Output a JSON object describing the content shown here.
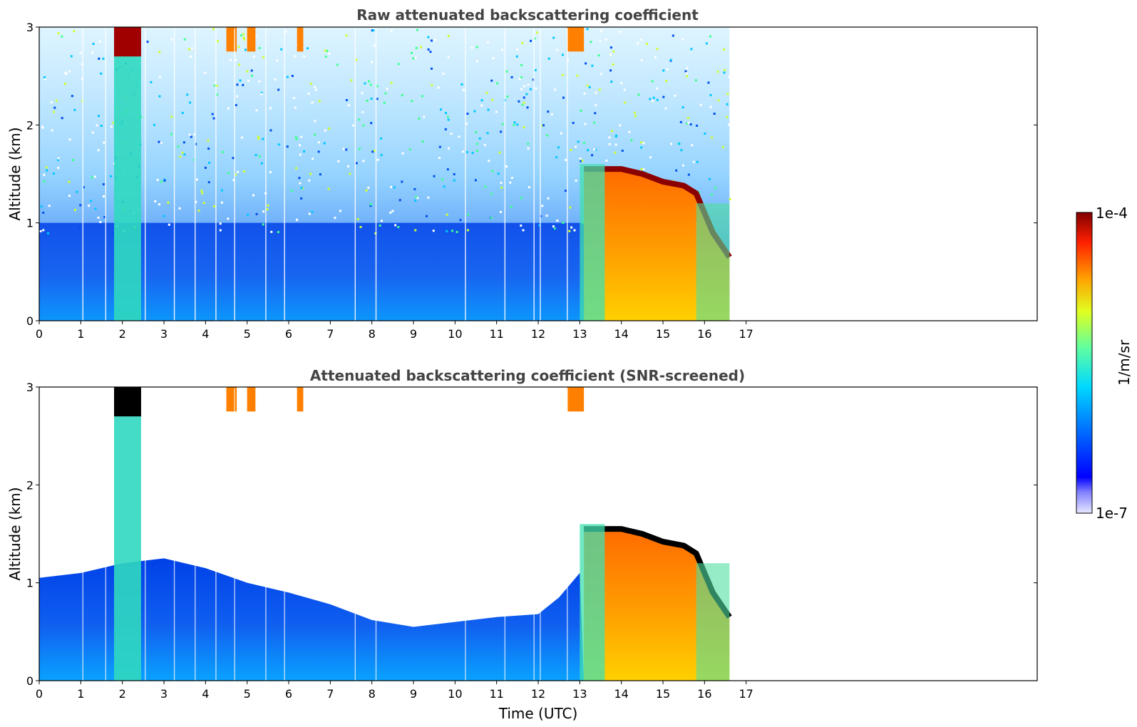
{
  "colorbar": {
    "max_label": "1e-4",
    "min_label": "1e-7",
    "unit_label": "1/m/sr",
    "scale": "log",
    "range": [
      1e-07,
      0.0001
    ],
    "colormap": "jet"
  },
  "chart_data": [
    {
      "type": "heatmap",
      "title": "Raw attenuated backscattering coefficient",
      "xlabel": "",
      "ylabel": "Altitude (km)",
      "xlim": [
        0,
        24
      ],
      "ylim": [
        0,
        3
      ],
      "xticks": [
        "0",
        "1",
        "2",
        "3",
        "4",
        "5",
        "6",
        "7",
        "8",
        "9",
        "10",
        "11",
        "12",
        "13",
        "14",
        "15",
        "16",
        "17"
      ],
      "yticks": [
        "0",
        "1",
        "2",
        "3"
      ],
      "data_end_hour": 16.6,
      "cloud_top_km": [
        [
          13.1,
          1.55
        ],
        [
          13.5,
          1.55
        ],
        [
          14.0,
          1.55
        ],
        [
          14.5,
          1.5
        ],
        [
          15.0,
          1.42
        ],
        [
          15.5,
          1.38
        ],
        [
          15.8,
          1.3
        ],
        [
          16.0,
          1.1
        ],
        [
          16.2,
          0.9
        ],
        [
          16.6,
          0.65
        ]
      ],
      "grid": false
    },
    {
      "type": "heatmap",
      "title": "Attenuated backscattering coefficient (SNR-screened)",
      "xlabel": "Time (UTC)",
      "ylabel": "Altitude (km)",
      "xlim": [
        0,
        24
      ],
      "ylim": [
        0,
        3
      ],
      "xticks": [
        "0",
        "1",
        "2",
        "3",
        "4",
        "5",
        "6",
        "7",
        "8",
        "9",
        "10",
        "11",
        "12",
        "13",
        "14",
        "15",
        "16",
        "17"
      ],
      "yticks": [
        "0",
        "1",
        "2",
        "3"
      ],
      "data_end_hour": 16.6,
      "boundary_layer_top_km": [
        [
          0,
          1.05
        ],
        [
          1,
          1.1
        ],
        [
          2,
          1.2
        ],
        [
          3,
          1.25
        ],
        [
          4,
          1.15
        ],
        [
          5,
          1.0
        ],
        [
          6,
          0.9
        ],
        [
          7,
          0.78
        ],
        [
          8,
          0.62
        ],
        [
          9,
          0.55
        ],
        [
          10,
          0.6
        ],
        [
          11,
          0.65
        ],
        [
          12,
          0.68
        ],
        [
          12.5,
          0.85
        ],
        [
          13.0,
          1.1
        ]
      ],
      "cloud_top_km": [
        [
          13.1,
          1.55
        ],
        [
          13.5,
          1.55
        ],
        [
          14.0,
          1.55
        ],
        [
          14.5,
          1.5
        ],
        [
          15.0,
          1.42
        ],
        [
          15.5,
          1.38
        ],
        [
          15.8,
          1.3
        ],
        [
          16.0,
          1.1
        ],
        [
          16.2,
          0.9
        ],
        [
          16.6,
          0.65
        ]
      ],
      "grid": false
    }
  ]
}
